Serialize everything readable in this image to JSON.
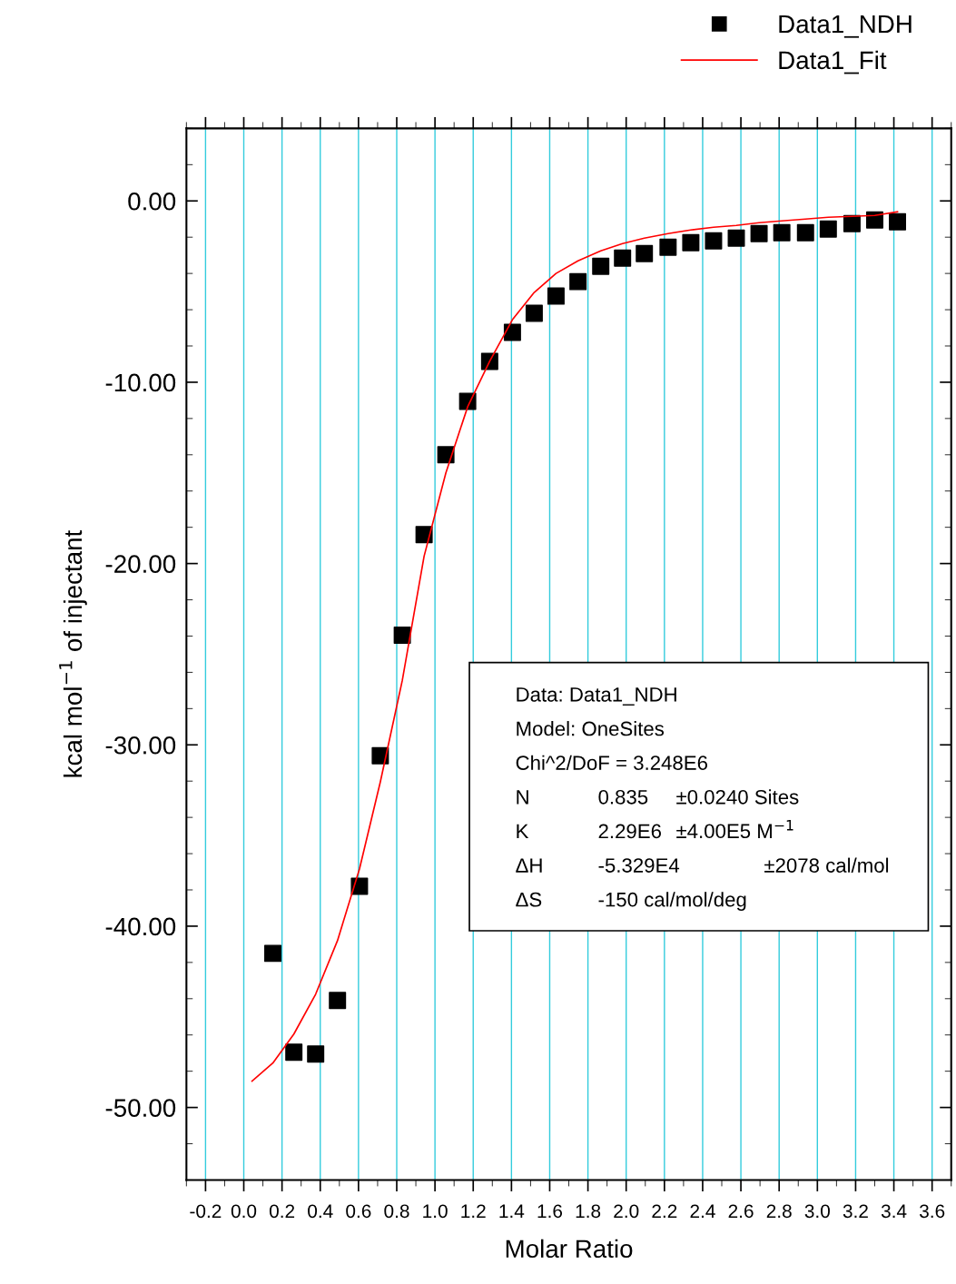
{
  "chart_data": {
    "type": "scatter",
    "xlabel": "Molar Ratio",
    "ylabel": "kcal mol$^{−1}$ of injectant",
    "xlim": [
      -0.3,
      3.7
    ],
    "ylim": [
      -54,
      4
    ],
    "xticks": [
      -0.2,
      {
        "value": 0.0,
        "label": "0.0"
      },
      0.2,
      0.4,
      0.6,
      0.8,
      {
        "value": 1.0,
        "label": "1.0"
      },
      1.2,
      1.4,
      1.6,
      1.8,
      {
        "value": 2.0,
        "label": "2.0"
      },
      2.2,
      2.4,
      2.6,
      2.8,
      {
        "value": 3.0,
        "label": "3.0"
      },
      3.2,
      3.4,
      3.6
    ],
    "yticks": [
      {
        "value": 0,
        "label": "0.00"
      },
      {
        "value": -10,
        "label": "-10.00"
      },
      {
        "value": -20,
        "label": "-20.00"
      },
      {
        "value": -30,
        "label": "-30.00"
      },
      {
        "value": -40,
        "label": "-40.00"
      },
      {
        "value": -50,
        "label": "-50.00"
      }
    ],
    "grid": "x",
    "legend": "top right",
    "series": [
      {
        "name": "Data1_NDH",
        "marker": "square",
        "color": "#000000",
        "x": [
          0.152,
          0.262,
          0.376,
          0.49,
          0.605,
          0.714,
          0.829,
          0.943,
          1.057,
          1.171,
          1.286,
          1.405,
          1.519,
          1.633,
          1.748,
          1.867,
          1.981,
          2.095,
          2.219,
          2.338,
          2.457,
          2.576,
          2.695,
          2.814,
          2.938,
          3.057,
          3.181,
          3.3,
          3.419
        ],
        "values": [
          -41.5,
          -46.95,
          -47.05,
          -44.1,
          -37.8,
          -30.6,
          -23.95,
          -18.4,
          -14.0,
          -11.05,
          -8.85,
          -7.25,
          -6.2,
          -5.25,
          -4.45,
          -3.6,
          -3.15,
          -2.9,
          -2.55,
          -2.3,
          -2.2,
          -2.05,
          -1.8,
          -1.75,
          -1.75,
          -1.55,
          -1.25,
          -1.05,
          -1.15
        ]
      },
      {
        "name": "Data1_Fit",
        "type": "line",
        "marker": "none",
        "line_style": "solid",
        "color": "#ff0000",
        "x": [
          0.043,
          0.152,
          0.262,
          0.376,
          0.49,
          0.605,
          0.714,
          0.829,
          0.943,
          1.057,
          1.171,
          1.286,
          1.405,
          1.519,
          1.633,
          1.748,
          1.867,
          1.981,
          2.095,
          2.219,
          2.338,
          2.457,
          2.576,
          2.695,
          2.814,
          2.938,
          3.057,
          3.181,
          3.3,
          3.419
        ],
        "values": [
          -48.55,
          -47.55,
          -45.95,
          -43.75,
          -40.8,
          -36.85,
          -32.05,
          -26.45,
          -19.6,
          -15.0,
          -11.35,
          -8.85,
          -6.55,
          -5.05,
          -4.0,
          -3.3,
          -2.75,
          -2.35,
          -2.05,
          -1.8,
          -1.6,
          -1.45,
          -1.35,
          -1.2,
          -1.1,
          -1.0,
          -0.9,
          -0.85,
          -0.8,
          -0.6
        ]
      }
    ],
    "annotations": [
      "Data: Data1_NDH",
      "Model: OneSites",
      "Chi^2/DoF = 3.248E6",
      "N",
      "0.835",
      "±0.0240 Sites",
      "K",
      "2.29E6",
      "±4.00E5 M$^{−1}$",
      "ΔH",
      "-5.329E4",
      "±2078 cal/mol",
      "ΔS",
      "-150 cal/mol/deg"
    ]
  }
}
